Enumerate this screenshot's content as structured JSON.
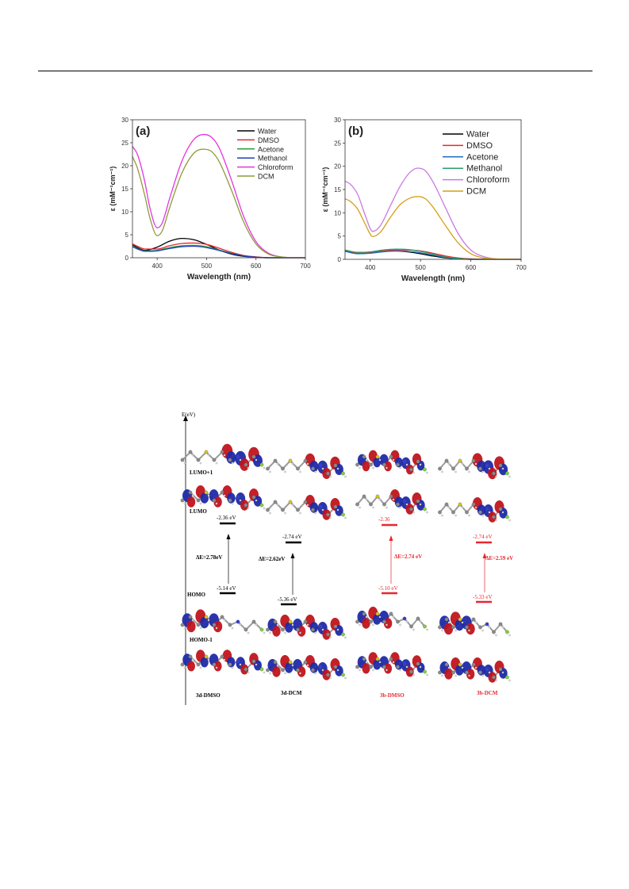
{
  "chart_data": [
    {
      "type": "line",
      "panel_label": "(a)",
      "xlabel": "Wavelength (nm)",
      "ylabel": "ε (mM⁻¹cm⁻¹)",
      "xlim": [
        350,
        700
      ],
      "ylim": [
        0,
        30
      ],
      "xticks": [
        400,
        500,
        600,
        700
      ],
      "yticks": [
        0,
        5,
        10,
        15,
        20,
        25,
        30
      ],
      "legend_position": "top-right",
      "series": [
        {
          "name": "Water",
          "color": "#000000",
          "x": [
            350,
            360,
            375,
            400,
            425,
            450,
            475,
            500,
            525,
            550,
            575,
            600,
            625,
            650,
            700
          ],
          "y": [
            2.9,
            2.2,
            1.6,
            2.3,
            3.6,
            4.2,
            3.9,
            2.9,
            1.7,
            0.8,
            0.3,
            0.1,
            0,
            0,
            0
          ]
        },
        {
          "name": "DMSO",
          "color": "#e8272d",
          "x": [
            350,
            360,
            375,
            400,
            425,
            450,
            475,
            500,
            525,
            550,
            575,
            600,
            625,
            650,
            700
          ],
          "y": [
            3.0,
            2.5,
            1.9,
            1.9,
            2.6,
            3.1,
            3.2,
            2.9,
            2.1,
            1.2,
            0.5,
            0.2,
            0,
            0,
            0
          ]
        },
        {
          "name": "Acetone",
          "color": "#2a9d3a",
          "x": [
            350,
            360,
            375,
            400,
            425,
            450,
            475,
            500,
            525,
            550,
            575,
            600,
            625,
            650,
            700
          ],
          "y": [
            2.6,
            2.0,
            1.5,
            1.6,
            2.2,
            2.6,
            2.7,
            2.4,
            1.7,
            1.0,
            0.4,
            0.1,
            0,
            0,
            0
          ]
        },
        {
          "name": "Methanol",
          "color": "#1f3fbf",
          "x": [
            350,
            360,
            375,
            400,
            425,
            450,
            475,
            500,
            525,
            550,
            575,
            600,
            625,
            650,
            700
          ],
          "y": [
            2.4,
            1.9,
            1.4,
            1.5,
            2.0,
            2.4,
            2.5,
            2.2,
            1.6,
            0.9,
            0.4,
            0.1,
            0,
            0,
            0
          ]
        },
        {
          "name": "Chloroform",
          "color": "#e534e0",
          "x": [
            350,
            360,
            375,
            385,
            400,
            410,
            425,
            450,
            475,
            495,
            510,
            525,
            550,
            575,
            600,
            625,
            650,
            700
          ],
          "y": [
            24.2,
            22.5,
            16.5,
            11.0,
            6.5,
            7.5,
            12.8,
            21.0,
            25.8,
            26.8,
            26.2,
            24.0,
            17.0,
            9.0,
            3.5,
            1.0,
            0.2,
            0
          ]
        },
        {
          "name": "DCM",
          "color": "#8f9a3a",
          "x": [
            350,
            360,
            375,
            385,
            400,
            410,
            425,
            450,
            475,
            495,
            510,
            525,
            550,
            575,
            600,
            625,
            650,
            700
          ],
          "y": [
            22.0,
            19.5,
            13.5,
            8.8,
            4.8,
            5.8,
            10.8,
            18.4,
            22.8,
            23.6,
            23.1,
            21.0,
            14.8,
            7.8,
            3.0,
            0.8,
            0.2,
            0
          ]
        }
      ]
    },
    {
      "type": "line",
      "panel_label": "(b)",
      "xlabel": "Wavelength (nm)",
      "ylabel": "ε (mM⁻¹cm⁻¹)",
      "xlim": [
        350,
        700
      ],
      "ylim": [
        0,
        30
      ],
      "xticks": [
        400,
        500,
        600,
        700
      ],
      "yticks": [
        0,
        5,
        10,
        15,
        20,
        25,
        30
      ],
      "legend_position": "top-right",
      "series": [
        {
          "name": "Water",
          "color": "#000000",
          "x": [
            350,
            375,
            400,
            425,
            450,
            475,
            500,
            525,
            550,
            575,
            600,
            700
          ],
          "y": [
            1.8,
            1.3,
            1.4,
            1.7,
            1.8,
            1.6,
            1.2,
            0.7,
            0.3,
            0.1,
            0,
            0
          ]
        },
        {
          "name": "DMSO",
          "color": "#e8272d",
          "x": [
            350,
            375,
            400,
            425,
            450,
            475,
            500,
            525,
            550,
            575,
            600,
            700
          ],
          "y": [
            1.9,
            1.4,
            1.5,
            1.8,
            2.0,
            2.0,
            1.8,
            1.3,
            0.7,
            0.3,
            0.1,
            0
          ]
        },
        {
          "name": "Acetone",
          "color": "#1f6fbf",
          "x": [
            350,
            375,
            400,
            425,
            450,
            475,
            500,
            525,
            550,
            575,
            600,
            700
          ],
          "y": [
            1.7,
            1.2,
            1.3,
            1.6,
            1.8,
            1.7,
            1.4,
            0.9,
            0.4,
            0.1,
            0,
            0
          ]
        },
        {
          "name": "Methanol",
          "color": "#2a9d6a",
          "x": [
            350,
            375,
            400,
            425,
            450,
            475,
            500,
            525,
            550,
            575,
            600,
            700
          ],
          "y": [
            2.0,
            1.5,
            1.6,
            2.0,
            2.2,
            2.1,
            1.7,
            1.1,
            0.5,
            0.2,
            0,
            0
          ]
        },
        {
          "name": "Chloroform",
          "color": "#c77be0",
          "x": [
            350,
            360,
            375,
            390,
            405,
            420,
            440,
            460,
            480,
            495,
            510,
            525,
            550,
            575,
            600,
            625,
            650,
            700
          ],
          "y": [
            16.8,
            16.2,
            14.0,
            9.5,
            6.0,
            7.2,
            11.5,
            15.8,
            18.8,
            19.6,
            19.0,
            16.6,
            11.0,
            5.5,
            2.0,
            0.6,
            0.1,
            0
          ]
        },
        {
          "name": "DCM",
          "color": "#d4a017",
          "x": [
            350,
            360,
            375,
            390,
            405,
            420,
            440,
            460,
            480,
            495,
            510,
            525,
            550,
            575,
            600,
            625,
            650,
            700
          ],
          "y": [
            13.0,
            12.5,
            10.8,
            7.6,
            4.9,
            5.8,
            9.0,
            11.8,
            13.2,
            13.5,
            13.0,
            11.2,
            7.2,
            3.5,
            1.2,
            0.3,
            0.1,
            0
          ]
        }
      ]
    }
  ],
  "mo_diagram": {
    "axis_label": "E(eV)",
    "row_labels": {
      "lumo1": "LUMO+1",
      "lumo": "LUMO",
      "homo": "HOMO",
      "homo1": "HOMO-1"
    },
    "columns": [
      {
        "name": "3d-DMSO",
        "lumo_energy": "-2.36 eV",
        "homo_energy": "-5.14 eV",
        "gap": "ΔE=2.78eV",
        "color": "#000000"
      },
      {
        "name": "3d-DCM",
        "lumo_energy": "-2.74 eV",
        "homo_energy": "-5.36 eV",
        "gap": "ΔE=2.62eV",
        "color": "#000000"
      },
      {
        "name": "3b-DMSO",
        "lumo_energy": "-2.36",
        "homo_energy": "-5.10 eV",
        "gap": "ΔE=2.74 eV",
        "color": "#e8272d"
      },
      {
        "name": "3b-DCM",
        "lumo_energy": "-2.74 eV",
        "homo_energy": "-5.33 eV",
        "gap": "ΔE=2.59 eV",
        "color": "#e8272d"
      }
    ],
    "orbital_colors": {
      "positive": "#c0141c",
      "negative": "#1f2aa8",
      "atom_c": "#8a8a8a",
      "atom_s": "#d9c21a",
      "atom_f": "#7fd13b",
      "atom_o": "#d21e1e",
      "atom_n": "#2f3fd6"
    }
  }
}
